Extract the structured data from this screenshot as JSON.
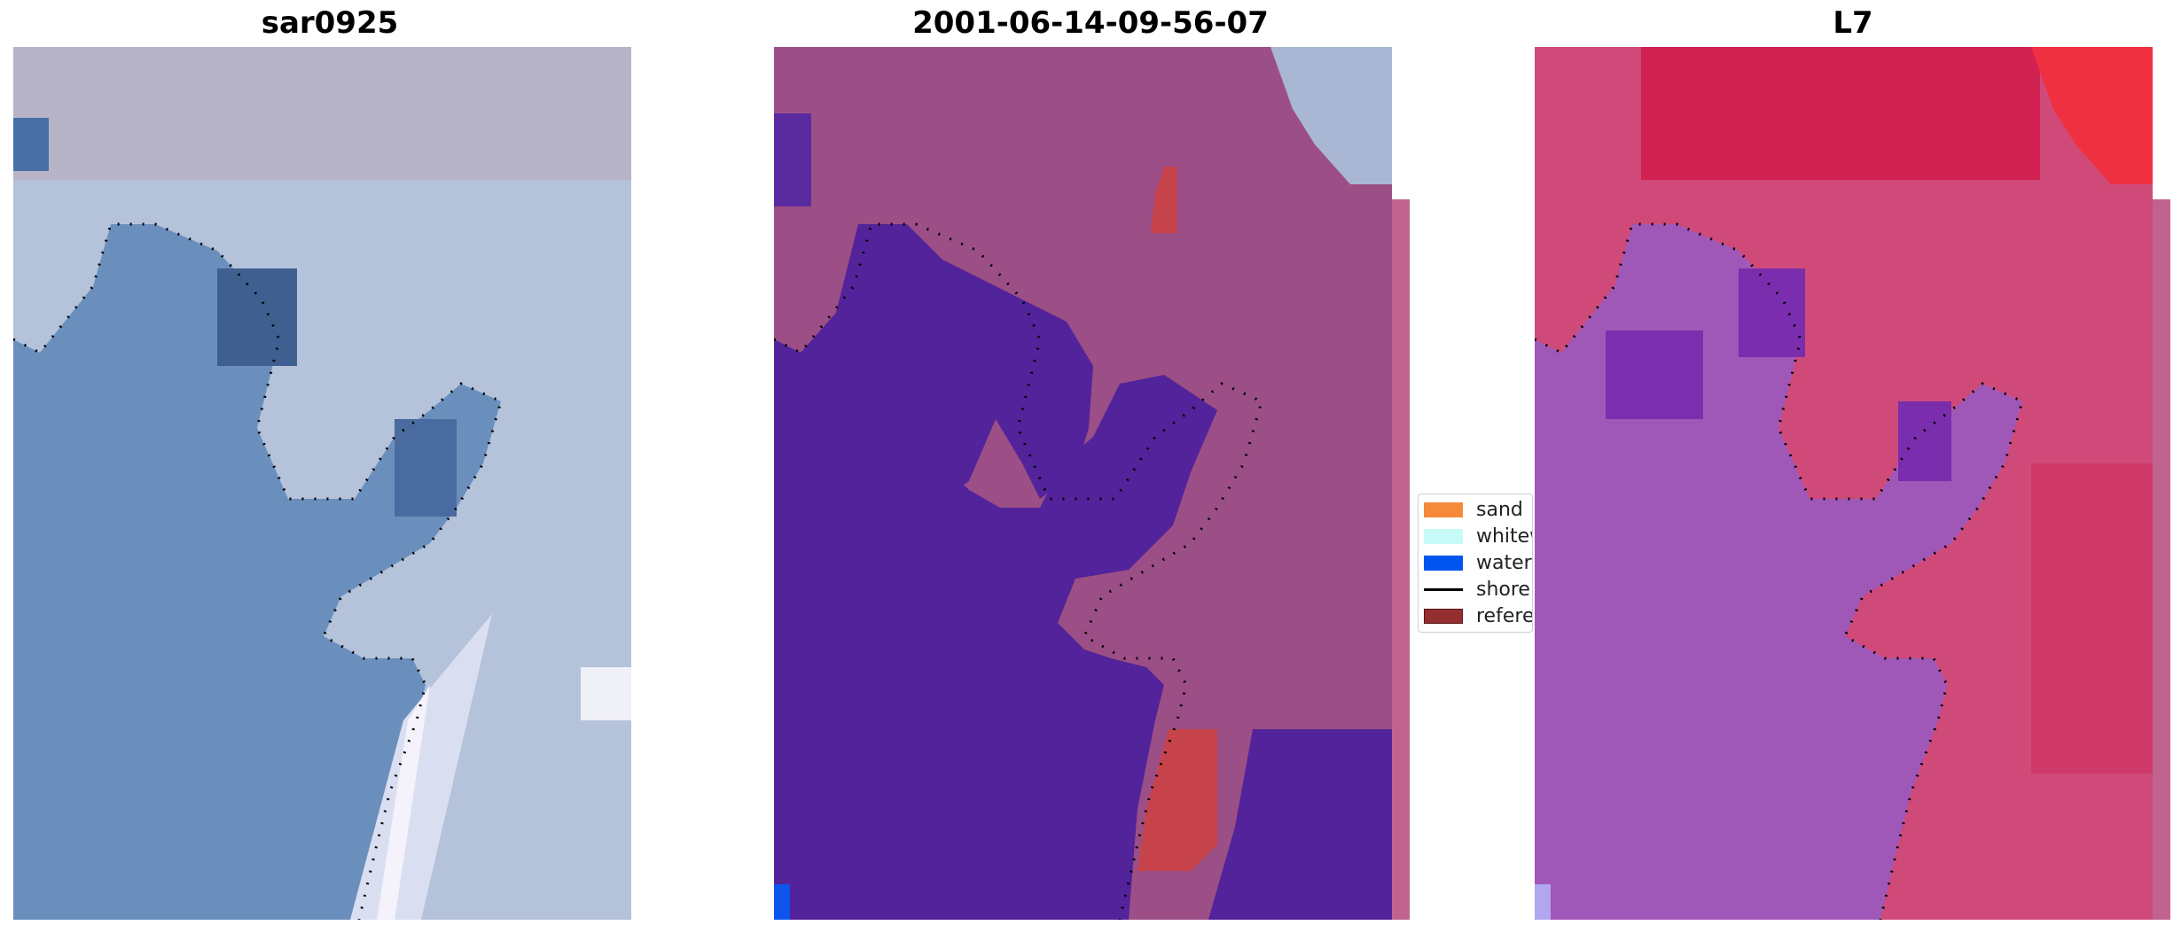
{
  "panels": [
    {
      "title": "sar0925"
    },
    {
      "title": "2001-06-14-09-56-07"
    },
    {
      "title": "L7"
    }
  ],
  "legend": {
    "items": [
      {
        "label": "sand",
        "kind": "patch",
        "color": "#f58a3a"
      },
      {
        "label": "whitewater",
        "kind": "patch",
        "color": "#c6fbf7"
      },
      {
        "label": "water",
        "kind": "patch",
        "color": "#0055ee"
      },
      {
        "label": "shoreline",
        "kind": "line",
        "color": "#000000"
      },
      {
        "label": "reference shoreline",
        "kind": "patch",
        "color": "#93302f"
      }
    ]
  },
  "colors": {
    "sar_water": "#6b8fbd",
    "sar_land": "#b7c5dc",
    "classified_water": "#52239a",
    "classified_land": "#9c4f86",
    "classified_sand": "#c7434b",
    "l7_water": "#a058b8",
    "l7_land": "#d43a66"
  }
}
